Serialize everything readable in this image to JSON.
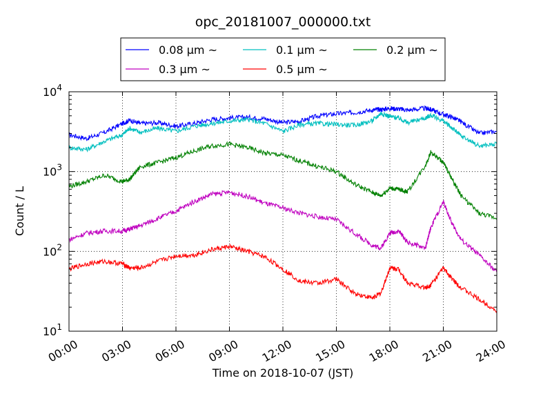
{
  "chart_data": {
    "type": "line",
    "title": "opc_20181007_000000.txt",
    "xlabel": "Time on 2018-10-07 (JST)",
    "ylabel": "Count / L",
    "y_scale": "log",
    "ylim": [
      10,
      10000
    ],
    "xlim": [
      0,
      24
    ],
    "grid": true,
    "legend_position": "top-center",
    "x_tick_labels": [
      "00:00",
      "03:00",
      "06:00",
      "09:00",
      "12:00",
      "15:00",
      "18:00",
      "21:00",
      "24:00"
    ],
    "y_tick_labels": [
      {
        "base": "10",
        "exp": "1"
      },
      {
        "base": "10",
        "exp": "2"
      },
      {
        "base": "10",
        "exp": "3"
      },
      {
        "base": "10",
        "exp": "4"
      }
    ],
    "x": [
      0,
      1,
      2,
      3,
      3.4,
      4,
      5,
      6,
      7,
      8,
      9,
      10,
      11,
      12,
      13,
      14,
      15,
      16,
      17,
      17.5,
      18,
      18.5,
      19,
      20,
      20.3,
      21,
      21.5,
      22,
      23,
      24
    ],
    "series": [
      {
        "name": "0.08 µm ~",
        "color": "#0000ff",
        "values": [
          2900,
          2600,
          3100,
          4000,
          4400,
          4000,
          4100,
          3700,
          4000,
          4500,
          4700,
          4800,
          4600,
          4100,
          4300,
          5000,
          5300,
          5500,
          5900,
          6000,
          6200,
          6100,
          5900,
          6200,
          6000,
          5200,
          4800,
          4200,
          3000,
          3200
        ]
      },
      {
        "name": "0.1 µm ~",
        "color": "#00bfbf",
        "values": [
          2000,
          1900,
          2400,
          2900,
          3500,
          3100,
          3500,
          3200,
          3700,
          4000,
          4300,
          4500,
          4000,
          3200,
          3900,
          4000,
          3900,
          3800,
          4300,
          5400,
          4900,
          4700,
          4100,
          4700,
          5100,
          4300,
          3500,
          2800,
          2100,
          2200
        ]
      },
      {
        "name": "0.2 µm ~",
        "color": "#008000",
        "values": [
          650,
          750,
          900,
          750,
          800,
          1150,
          1300,
          1500,
          1800,
          2100,
          2200,
          2000,
          1700,
          1600,
          1350,
          1150,
          1000,
          700,
          550,
          500,
          620,
          600,
          560,
          1200,
          1750,
          1300,
          800,
          500,
          300,
          260
        ]
      },
      {
        "name": "0.3 µm ~",
        "color": "#bf00bf",
        "values": [
          140,
          170,
          180,
          180,
          190,
          210,
          260,
          320,
          420,
          520,
          550,
          490,
          400,
          350,
          300,
          270,
          250,
          170,
          120,
          110,
          170,
          180,
          130,
          110,
          200,
          420,
          220,
          140,
          90,
          55
        ]
      },
      {
        "name": "0.5 µm ~",
        "color": "#ff0000",
        "values": [
          60,
          70,
          75,
          70,
          62,
          62,
          75,
          88,
          90,
          105,
          115,
          100,
          85,
          60,
          42,
          40,
          45,
          30,
          26,
          30,
          62,
          60,
          40,
          35,
          38,
          62,
          45,
          35,
          25,
          18
        ]
      }
    ]
  }
}
